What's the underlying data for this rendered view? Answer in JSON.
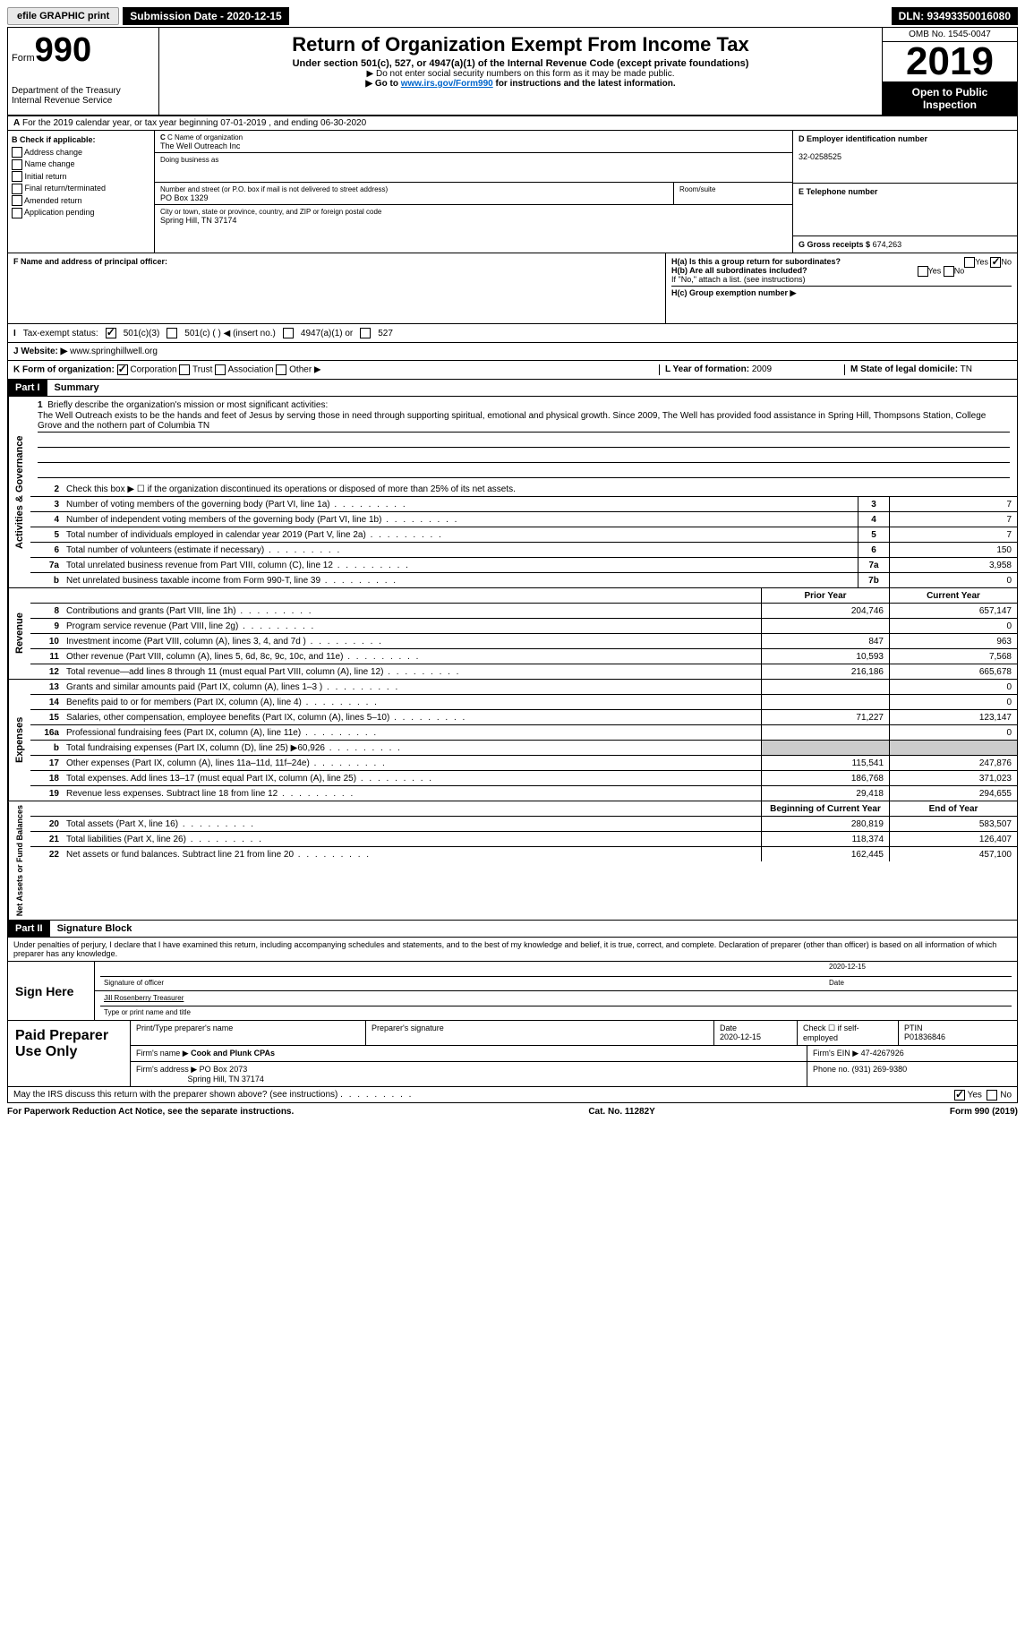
{
  "topbar": {
    "efile": "efile GRAPHIC print",
    "submission": "Submission Date - 2020-12-15",
    "dln": "DLN: 93493350016080"
  },
  "header": {
    "form_prefix": "Form",
    "form_number": "990",
    "dept": "Department of the Treasury\nInternal Revenue Service",
    "title": "Return of Organization Exempt From Income Tax",
    "subtitle": "Under section 501(c), 527, or 4947(a)(1) of the Internal Revenue Code (except private foundations)",
    "note1": "▶ Do not enter social security numbers on this form as it may be made public.",
    "note2_pre": "▶ Go to ",
    "note2_link": "www.irs.gov/Form990",
    "note2_post": " for instructions and the latest information.",
    "omb": "OMB No. 1545-0047",
    "year": "2019",
    "open": "Open to Public Inspection"
  },
  "row_a": "For the 2019 calendar year, or tax year beginning 07-01-2019   , and ending 06-30-2020",
  "col_b": {
    "label": "B Check if applicable:",
    "items": [
      "Address change",
      "Name change",
      "Initial return",
      "Final return/terminated",
      "Amended return",
      "Application pending"
    ]
  },
  "col_c": {
    "name_label": "C Name of organization",
    "name": "The Well Outreach Inc",
    "dba_label": "Doing business as",
    "dba": "",
    "addr_label": "Number and street (or P.O. box if mail is not delivered to street address)",
    "addr": "PO Box 1329",
    "room_label": "Room/suite",
    "city_label": "City or town, state or province, country, and ZIP or foreign postal code",
    "city": "Spring Hill, TN  37174"
  },
  "col_d": {
    "ein_label": "D Employer identification number",
    "ein": "32-0258525",
    "tel_label": "E Telephone number",
    "tel": "",
    "gross_label": "G Gross receipts $",
    "gross": "674,263"
  },
  "row_f": {
    "label": "F  Name and address of principal officer:",
    "value": ""
  },
  "row_h": {
    "ha": "H(a)  Is this a group return for subordinates?",
    "hb": "H(b)  Are all subordinates included?",
    "hb_note": "If \"No,\" attach a list. (see instructions)",
    "hc": "H(c)  Group exemption number ▶"
  },
  "row_i": {
    "label": "Tax-exempt status:",
    "opts": [
      "501(c)(3)",
      "501(c) (  ) ◀ (insert no.)",
      "4947(a)(1) or",
      "527"
    ]
  },
  "row_j": {
    "label": "J   Website: ▶",
    "value": "www.springhillwell.org"
  },
  "row_k": {
    "label": "K Form of organization:",
    "opts": [
      "Corporation",
      "Trust",
      "Association",
      "Other ▶"
    ],
    "year_label": "L Year of formation:",
    "year": "2009",
    "state_label": "M State of legal domicile:",
    "state": "TN"
  },
  "part1": {
    "header": "Part I",
    "title": "Summary",
    "line1_label": "Briefly describe the organization's mission or most significant activities:",
    "mission": "The Well Outreach exists to be the hands and feet of Jesus by serving those in need through supporting spiritual, emotional and physical growth. Since 2009, The Well has provided food assistance in Spring Hill, Thompsons Station, College Grove and the nothern part of Columbia TN",
    "line2": "Check this box ▶ ☐  if the organization discontinued its operations or disposed of more than 25% of its net assets.",
    "lines_gov": [
      {
        "num": "3",
        "desc": "Number of voting members of the governing body (Part VI, line 1a)",
        "box": "3",
        "val": "7"
      },
      {
        "num": "4",
        "desc": "Number of independent voting members of the governing body (Part VI, line 1b)",
        "box": "4",
        "val": "7"
      },
      {
        "num": "5",
        "desc": "Total number of individuals employed in calendar year 2019 (Part V, line 2a)",
        "box": "5",
        "val": "7"
      },
      {
        "num": "6",
        "desc": "Total number of volunteers (estimate if necessary)",
        "box": "6",
        "val": "150"
      },
      {
        "num": "7a",
        "desc": "Total unrelated business revenue from Part VIII, column (C), line 12",
        "box": "7a",
        "val": "3,958"
      },
      {
        "num": "b",
        "desc": "Net unrelated business taxable income from Form 990-T, line 39",
        "box": "7b",
        "val": "0"
      }
    ],
    "rev_header": {
      "prior": "Prior Year",
      "current": "Current Year"
    },
    "lines_rev": [
      {
        "num": "8",
        "desc": "Contributions and grants (Part VIII, line 1h)",
        "prior": "204,746",
        "current": "657,147"
      },
      {
        "num": "9",
        "desc": "Program service revenue (Part VIII, line 2g)",
        "prior": "",
        "current": "0"
      },
      {
        "num": "10",
        "desc": "Investment income (Part VIII, column (A), lines 3, 4, and 7d )",
        "prior": "847",
        "current": "963"
      },
      {
        "num": "11",
        "desc": "Other revenue (Part VIII, column (A), lines 5, 6d, 8c, 9c, 10c, and 11e)",
        "prior": "10,593",
        "current": "7,568"
      },
      {
        "num": "12",
        "desc": "Total revenue—add lines 8 through 11 (must equal Part VIII, column (A), line 12)",
        "prior": "216,186",
        "current": "665,678"
      }
    ],
    "lines_exp": [
      {
        "num": "13",
        "desc": "Grants and similar amounts paid (Part IX, column (A), lines 1–3 )",
        "prior": "",
        "current": "0"
      },
      {
        "num": "14",
        "desc": "Benefits paid to or for members (Part IX, column (A), line 4)",
        "prior": "",
        "current": "0"
      },
      {
        "num": "15",
        "desc": "Salaries, other compensation, employee benefits (Part IX, column (A), lines 5–10)",
        "prior": "71,227",
        "current": "123,147"
      },
      {
        "num": "16a",
        "desc": "Professional fundraising fees (Part IX, column (A), line 11e)",
        "prior": "",
        "current": "0"
      },
      {
        "num": "b",
        "desc": "Total fundraising expenses (Part IX, column (D), line 25) ▶60,926",
        "prior": "shade",
        "current": "shade"
      },
      {
        "num": "17",
        "desc": "Other expenses (Part IX, column (A), lines 11a–11d, 11f–24e)",
        "prior": "115,541",
        "current": "247,876"
      },
      {
        "num": "18",
        "desc": "Total expenses. Add lines 13–17 (must equal Part IX, column (A), line 25)",
        "prior": "186,768",
        "current": "371,023"
      },
      {
        "num": "19",
        "desc": "Revenue less expenses. Subtract line 18 from line 12",
        "prior": "29,418",
        "current": "294,655"
      }
    ],
    "net_header": {
      "prior": "Beginning of Current Year",
      "current": "End of Year"
    },
    "lines_net": [
      {
        "num": "20",
        "desc": "Total assets (Part X, line 16)",
        "prior": "280,819",
        "current": "583,507"
      },
      {
        "num": "21",
        "desc": "Total liabilities (Part X, line 26)",
        "prior": "118,374",
        "current": "126,407"
      },
      {
        "num": "22",
        "desc": "Net assets or fund balances. Subtract line 21 from line 20",
        "prior": "162,445",
        "current": "457,100"
      }
    ]
  },
  "part2": {
    "header": "Part II",
    "title": "Signature Block",
    "intro": "Under penalties of perjury, I declare that I have examined this return, including accompanying schedules and statements, and to the best of my knowledge and belief, it is true, correct, and complete. Declaration of preparer (other than officer) is based on all information of which preparer has any knowledge.",
    "sign_label": "Sign Here",
    "sig_officer": "Signature of officer",
    "sig_date": "2020-12-15",
    "date_label": "Date",
    "name_title": "Jill Rosenberry  Treasurer",
    "name_title_label": "Type or print name and title",
    "preparer_label": "Paid Preparer Use Only",
    "prep_name_label": "Print/Type preparer's name",
    "prep_sig_label": "Preparer's signature",
    "prep_date_label": "Date",
    "prep_date": "2020-12-15",
    "check_label": "Check ☐ if self-employed",
    "ptin_label": "PTIN",
    "ptin": "P01836846",
    "firm_name_label": "Firm's name   ▶",
    "firm_name": "Cook and Plunk CPAs",
    "firm_ein_label": "Firm's EIN ▶",
    "firm_ein": "47-4267926",
    "firm_addr_label": "Firm's address ▶",
    "firm_addr": "PO Box 2073",
    "firm_city": "Spring Hill, TN  37174",
    "phone_label": "Phone no.",
    "phone": "(931) 269-9380",
    "may_irs": "May the IRS discuss this return with the preparer shown above? (see instructions)"
  },
  "footer": {
    "left": "For Paperwork Reduction Act Notice, see the separate instructions.",
    "mid": "Cat. No. 11282Y",
    "right": "Form 990 (2019)"
  }
}
